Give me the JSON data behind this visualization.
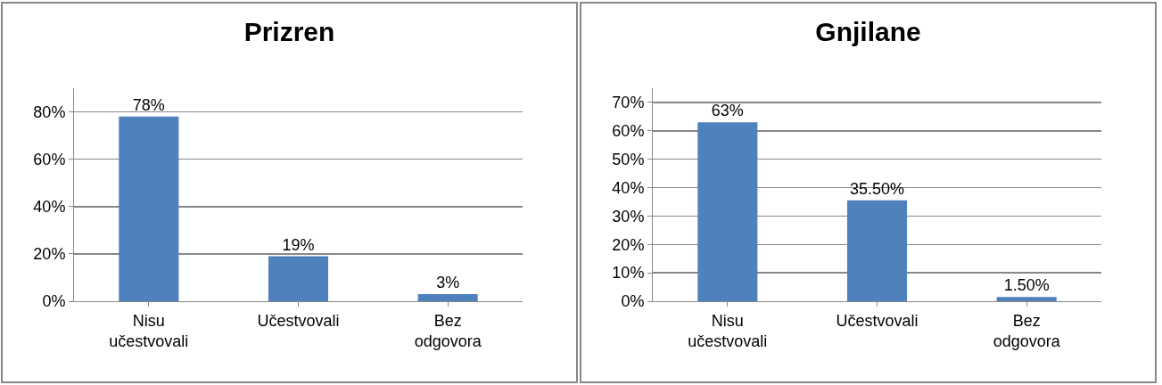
{
  "chart_data": [
    {
      "type": "bar",
      "title": "Prizren",
      "categories": [
        "Nisu učestvovali",
        "Učestvovali",
        "Bez odgovora"
      ],
      "values": [
        78,
        19,
        3
      ],
      "value_labels": [
        "78%",
        "19%",
        "3%"
      ],
      "color": "#4f81bd",
      "ylim": [
        0,
        90
      ],
      "yticks": [
        {
          "value": 0,
          "label": "0%"
        },
        {
          "value": 20,
          "label": "20%"
        },
        {
          "value": 40,
          "label": "40%"
        },
        {
          "value": 60,
          "label": "60%"
        },
        {
          "value": 80,
          "label": "80%"
        }
      ],
      "grid": "y",
      "legend": false
    },
    {
      "type": "bar",
      "title": "Gnjilane",
      "categories": [
        "Nisu učestvovali",
        "Učestvovali",
        "Bez odgovora"
      ],
      "values": [
        63,
        35.5,
        1.5
      ],
      "value_labels": [
        "63%",
        "35.50%",
        "1.50%"
      ],
      "color": "#4f81bd",
      "ylim": [
        0,
        75
      ],
      "yticks": [
        {
          "value": 0,
          "label": "0%"
        },
        {
          "value": 10,
          "label": "10%"
        },
        {
          "value": 20,
          "label": "20%"
        },
        {
          "value": 30,
          "label": "30%"
        },
        {
          "value": 40,
          "label": "40%"
        },
        {
          "value": 50,
          "label": "50%"
        },
        {
          "value": 60,
          "label": "60%"
        },
        {
          "value": 70,
          "label": "70%"
        }
      ],
      "grid": "y",
      "legend": false
    }
  ]
}
